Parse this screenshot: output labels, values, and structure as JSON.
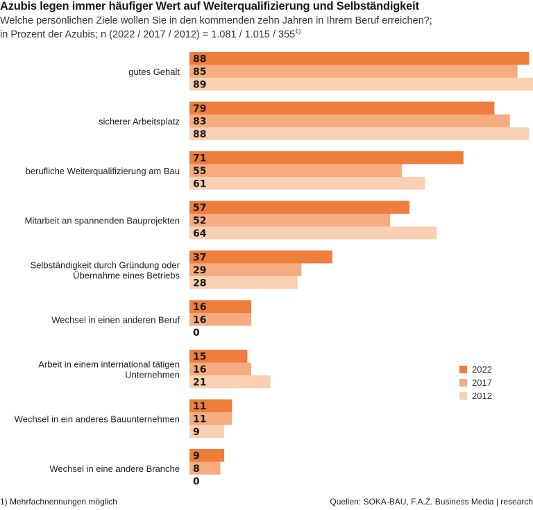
{
  "chart_data": {
    "type": "bar",
    "orientation": "horizontal",
    "title": "Azubis legen immer häufiger Wert auf Weiterqualifizierung und Selbständigkeit",
    "subtitle_line1": "Welche persönlichen Ziele wollen Sie in den kommenden zehn Jahren in Ihrem Beruf erreichen?;",
    "subtitle_line2": "in Prozent der Azubis; n (2022 / 2017 / 2012) = 1.081 / 1.015 / 355",
    "subtitle_sup": "1)",
    "xlabel": "",
    "ylabel": "",
    "xlim": [
      0,
      89
    ],
    "grid": false,
    "legend_position": "right",
    "categories": [
      [
        "gutes Gehalt"
      ],
      [
        "sicherer Arbeitsplatz"
      ],
      [
        "berufliche Weiterqualifizierung am Bau"
      ],
      [
        "Mitarbeit an spannenden Bauprojekten"
      ],
      [
        "Selbständigkeit durch Gründung oder",
        "Übernahme eines Betriebs"
      ],
      [
        "Wechsel in einen anderen Beruf"
      ],
      [
        "Arbeit in einem international tätigen",
        "Unternehmen"
      ],
      [
        "Wechsel in ein anderes Bauunternehmen"
      ],
      [
        "Wechsel in eine andere Branche"
      ]
    ],
    "series": [
      {
        "name": "2022",
        "color": "#ef7d3c",
        "values": [
          88,
          79,
          71,
          57,
          37,
          16,
          15,
          11,
          9
        ]
      },
      {
        "name": "2017",
        "color": "#f5ac80",
        "values": [
          85,
          83,
          55,
          52,
          29,
          16,
          16,
          11,
          8
        ]
      },
      {
        "name": "2012",
        "color": "#fad0b3",
        "values": [
          89,
          88,
          61,
          64,
          28,
          0,
          21,
          9,
          0
        ]
      }
    ]
  },
  "footnote": "1)  Mehrfachnennungen möglich",
  "source": "Quellen: SOKA-BAU, F.A.Z. Business Media | research"
}
